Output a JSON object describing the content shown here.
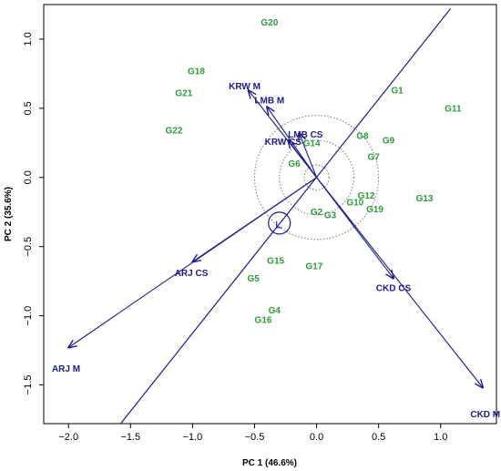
{
  "chart_data": {
    "type": "scatter",
    "xlabel": "PC 1 (46.6%)",
    "ylabel": "PC 2 (35.6%)",
    "xlim": [
      -2.2,
      1.45
    ],
    "ylim": [
      -1.78,
      1.25
    ],
    "x_ticks": [
      -2.0,
      -1.5,
      -1.0,
      -0.5,
      0.0,
      0.5,
      1.0
    ],
    "x_tick_labels": [
      "−2.0",
      "−1.5",
      "−1.0",
      "−0.5",
      "0.0",
      "0.5",
      "1.0"
    ],
    "y_ticks": [
      -1.5,
      -1.0,
      -0.5,
      0.0,
      0.5,
      1.0
    ],
    "y_tick_labels": [
      "−1.5",
      "−1.0",
      "−0.5",
      "0.0",
      "0.5",
      "1.0"
    ],
    "grid": false,
    "genotype_color": "#2e9b3c",
    "vector_color": "#1c1c8a",
    "genotypes": [
      {
        "label": "G1",
        "x": 0.65,
        "y": 0.63
      },
      {
        "label": "G2",
        "x": 0.0,
        "y": -0.25
      },
      {
        "label": "G3",
        "x": 0.11,
        "y": -0.27
      },
      {
        "label": "G4",
        "x": -0.34,
        "y": -0.96
      },
      {
        "label": "G5",
        "x": -0.51,
        "y": -0.73
      },
      {
        "label": "G6",
        "x": -0.18,
        "y": 0.1
      },
      {
        "label": "G7",
        "x": 0.46,
        "y": 0.15
      },
      {
        "label": "G8",
        "x": 0.37,
        "y": 0.3
      },
      {
        "label": "G9",
        "x": 0.58,
        "y": 0.27
      },
      {
        "label": "G10",
        "x": 0.31,
        "y": -0.18
      },
      {
        "label": "G11",
        "x": 1.1,
        "y": 0.5
      },
      {
        "label": "G12",
        "x": 0.4,
        "y": -0.13
      },
      {
        "label": "G13",
        "x": 0.87,
        "y": -0.15
      },
      {
        "label": "G14",
        "x": -0.04,
        "y": 0.25
      },
      {
        "label": "G15",
        "x": -0.33,
        "y": -0.6
      },
      {
        "label": "G16",
        "x": -0.43,
        "y": -1.03
      },
      {
        "label": "G17",
        "x": -0.02,
        "y": -0.64
      },
      {
        "label": "G18",
        "x": -0.97,
        "y": 0.77
      },
      {
        "label": "G19",
        "x": 0.47,
        "y": -0.23
      },
      {
        "label": "G20",
        "x": -0.38,
        "y": 1.12
      },
      {
        "label": "G21",
        "x": -1.07,
        "y": 0.61
      },
      {
        "label": "G22",
        "x": -1.15,
        "y": 0.34
      }
    ],
    "environments": [
      {
        "label": "KRW M",
        "x": -0.55,
        "y": 0.63,
        "label_x": -0.58,
        "label_y": 0.66
      },
      {
        "label": "LMB M",
        "x": -0.4,
        "y": 0.51,
        "label_x": -0.38,
        "label_y": 0.56
      },
      {
        "label": "LMB CS",
        "x": -0.14,
        "y": 0.32,
        "label_x": -0.09,
        "label_y": 0.31
      },
      {
        "label": "KRW CS",
        "x": -0.23,
        "y": 0.27,
        "label_x": -0.27,
        "label_y": 0.26
      },
      {
        "label": "ARJ M",
        "x": -2.0,
        "y": -1.23,
        "label_x": -2.02,
        "label_y": -1.38
      },
      {
        "label": "ARJ CS",
        "x": -1.0,
        "y": -0.61,
        "label_x": -1.01,
        "label_y": -0.69
      },
      {
        "label": "CKD CS",
        "x": 0.62,
        "y": -0.73,
        "label_x": 0.62,
        "label_y": -0.8
      },
      {
        "label": "CKD M",
        "x": 1.34,
        "y": -1.52,
        "label_x": 1.36,
        "label_y": -1.71
      }
    ],
    "ave_line": {
      "x1": -1.58,
      "y1": -1.78,
      "x2": 1.08,
      "y2": 1.22
    },
    "ideal_point": {
      "x": -0.3,
      "y": -0.33
    },
    "concentric_circle_radii": [
      0.1,
      0.3,
      0.5
    ]
  }
}
